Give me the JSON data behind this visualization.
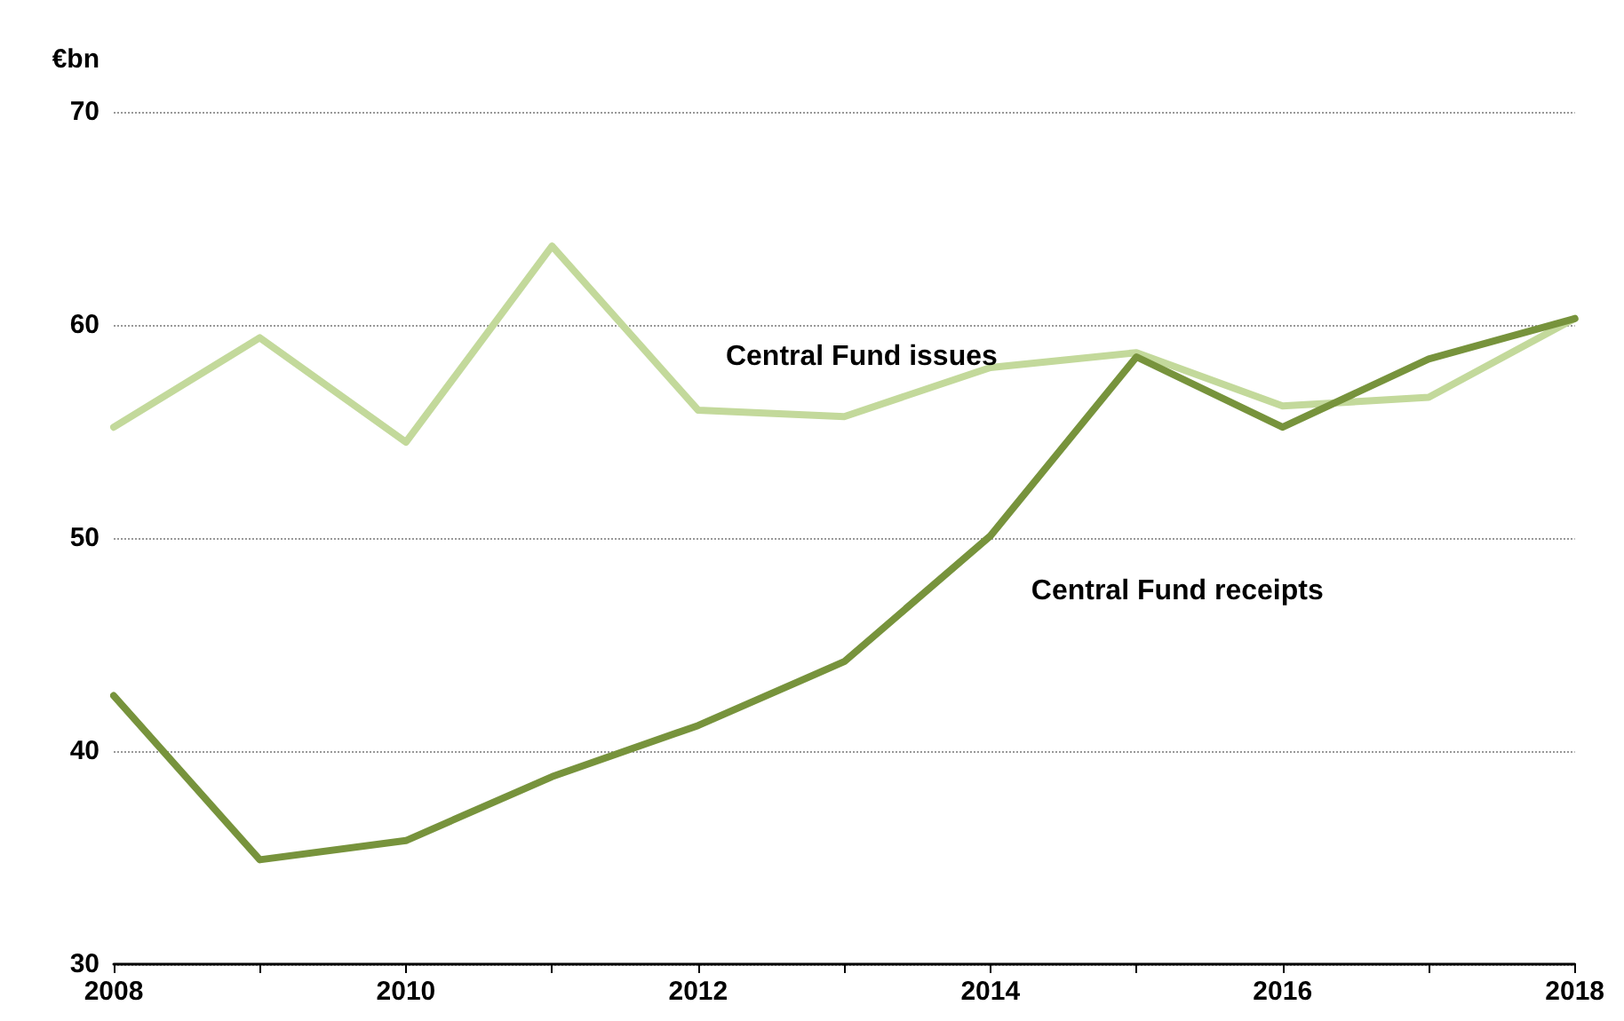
{
  "chart_data": {
    "type": "line",
    "ylabel": "€bn",
    "categories": [
      "2008",
      null,
      "2010",
      null,
      "2012",
      null,
      "2014",
      null,
      "2016",
      null,
      "2018"
    ],
    "series": [
      {
        "name": "Central Fund issues",
        "color": "#c3d99b",
        "values": [
          55.2,
          59.4,
          54.5,
          63.7,
          56.0,
          55.7,
          58.0,
          58.7,
          56.2,
          56.6,
          60.3
        ]
      },
      {
        "name": "Central Fund receipts",
        "color": "#77933c",
        "values": [
          42.6,
          34.9,
          35.8,
          38.8,
          41.2,
          44.2,
          50.1,
          58.5,
          55.2,
          58.4,
          60.3
        ]
      }
    ],
    "ylim": [
      30,
      70
    ],
    "yticks": [
      30,
      40,
      50,
      60,
      70
    ],
    "grid": "y",
    "legend": false,
    "marker": "none",
    "line_style": "solid"
  }
}
